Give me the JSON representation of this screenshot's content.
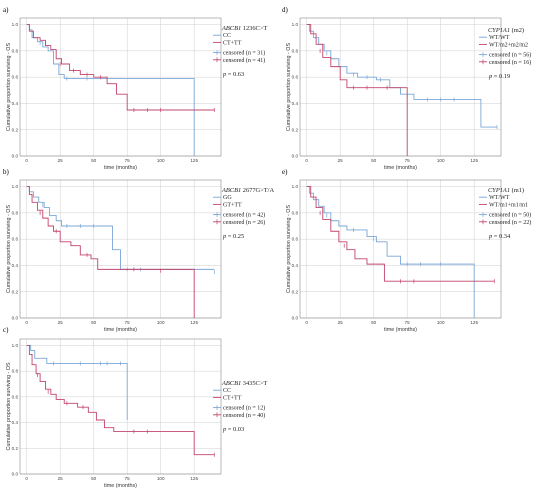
{
  "colors": {
    "blue": "#7aa7d6",
    "red": "#c2456b",
    "grid": "#cfcfcf",
    "frame": "#8a8a8a"
  },
  "chart_data": [
    {
      "panel": "a)",
      "type": "line",
      "xlabel": "time (months)",
      "ylabel": "Cumulative proportion surviving - OS",
      "xlim": [
        -5,
        145
      ],
      "ylim": [
        0,
        1.05
      ],
      "xticks": [
        0,
        25,
        50,
        75,
        100,
        125
      ],
      "yticks": [
        0,
        0.2,
        0.4,
        0.6,
        0.8,
        1.0
      ],
      "legend": {
        "gene": "ABCB1",
        "variant": " 1236C>T",
        "items": [
          "CC",
          "CT+TT",
          "censored (n = 31)",
          "censored (n = 41)"
        ]
      },
      "p_value": "= 0.63",
      "series": [
        {
          "name": "CC",
          "color": "#7aa7d6",
          "steps": [
            [
              0,
              1.0
            ],
            [
              2,
              0.96
            ],
            [
              4,
              0.9
            ],
            [
              8,
              0.87
            ],
            [
              12,
              0.83
            ],
            [
              16,
              0.8
            ],
            [
              20,
              0.7
            ],
            [
              24,
              0.62
            ],
            [
              28,
              0.59
            ],
            [
              125,
              0.59
            ],
            [
              125,
              0.0
            ]
          ],
          "censored": [
            [
              10,
              0.86
            ],
            [
              30,
              0.59
            ],
            [
              45,
              0.59
            ],
            [
              60,
              0.59
            ]
          ]
        },
        {
          "name": "CT+TT",
          "color": "#c2456b",
          "steps": [
            [
              0,
              1.0
            ],
            [
              2,
              0.95
            ],
            [
              5,
              0.9
            ],
            [
              10,
              0.88
            ],
            [
              14,
              0.84
            ],
            [
              18,
              0.81
            ],
            [
              22,
              0.74
            ],
            [
              26,
              0.7
            ],
            [
              32,
              0.65
            ],
            [
              40,
              0.62
            ],
            [
              50,
              0.6
            ],
            [
              60,
              0.55
            ],
            [
              67,
              0.47
            ],
            [
              75,
              0.35
            ],
            [
              140,
              0.35
            ]
          ],
          "censored": [
            [
              14,
              0.86
            ],
            [
              25,
              0.7
            ],
            [
              35,
              0.65
            ],
            [
              45,
              0.62
            ],
            [
              55,
              0.6
            ],
            [
              80,
              0.35
            ],
            [
              90,
              0.35
            ],
            [
              100,
              0.35
            ],
            [
              140,
              0.35
            ]
          ]
        }
      ]
    },
    {
      "panel": "b)",
      "type": "line",
      "xlabel": "time (months)",
      "ylabel": "Cumulative proportion surviving - OS",
      "xlim": [
        -5,
        145
      ],
      "ylim": [
        0,
        1.05
      ],
      "xticks": [
        0,
        25,
        50,
        75,
        100,
        125
      ],
      "yticks": [
        0,
        0.2,
        0.4,
        0.6,
        0.8,
        1.0
      ],
      "legend": {
        "gene": "ABCB1",
        "variant": " 2677G>T/A",
        "items": [
          "GG",
          "GT+TT",
          "censored (n = 42)",
          "censored (n = 26)"
        ]
      },
      "p_value": "= 0.25",
      "series": [
        {
          "name": "GG",
          "color": "#7aa7d6",
          "steps": [
            [
              0,
              1.0
            ],
            [
              2,
              0.96
            ],
            [
              5,
              0.92
            ],
            [
              9,
              0.88
            ],
            [
              13,
              0.84
            ],
            [
              17,
              0.78
            ],
            [
              22,
              0.74
            ],
            [
              26,
              0.7
            ],
            [
              60,
              0.7
            ],
            [
              64,
              0.52
            ],
            [
              70,
              0.37
            ],
            [
              140,
              0.37
            ]
          ],
          "censored": [
            [
              12,
              0.86
            ],
            [
              30,
              0.7
            ],
            [
              40,
              0.7
            ],
            [
              50,
              0.7
            ],
            [
              75,
              0.37
            ],
            [
              85,
              0.37
            ],
            [
              140,
              0.35
            ]
          ]
        },
        {
          "name": "GT+TT",
          "color": "#c2456b",
          "steps": [
            [
              0,
              1.0
            ],
            [
              2,
              0.94
            ],
            [
              4,
              0.88
            ],
            [
              8,
              0.82
            ],
            [
              12,
              0.76
            ],
            [
              16,
              0.7
            ],
            [
              20,
              0.66
            ],
            [
              25,
              0.58
            ],
            [
              33,
              0.55
            ],
            [
              40,
              0.48
            ],
            [
              48,
              0.45
            ],
            [
              53,
              0.37
            ],
            [
              125,
              0.35
            ],
            [
              125,
              0.0
            ]
          ],
          "censored": [
            [
              10,
              0.8
            ],
            [
              22,
              0.66
            ],
            [
              45,
              0.48
            ],
            [
              80,
              0.37
            ],
            [
              100,
              0.36
            ]
          ]
        }
      ]
    },
    {
      "panel": "c)",
      "type": "line",
      "xlabel": "time (months)",
      "ylabel": "Cumulative proportion surviving - OS",
      "xlim": [
        -5,
        145
      ],
      "ylim": [
        0,
        1.05
      ],
      "xticks": [
        0,
        25,
        50,
        75,
        100,
        125
      ],
      "yticks": [
        0,
        0.2,
        0.4,
        0.6,
        0.8,
        1.0
      ],
      "legend": {
        "gene": "ABCB1",
        "variant": " 3435C>T",
        "items": [
          "CC",
          "CT+TT",
          "censored (n = 12)",
          "censored (n = 40)"
        ]
      },
      "p_value": "= 0.03",
      "series": [
        {
          "name": "CC",
          "color": "#7aa7d6",
          "steps": [
            [
              0,
              1.0
            ],
            [
              3,
              0.96
            ],
            [
              6,
              0.9
            ],
            [
              15,
              0.86
            ],
            [
              75,
              0.86
            ],
            [
              75,
              0.42
            ]
          ],
          "censored": [
            [
              20,
              0.86
            ],
            [
              40,
              0.86
            ],
            [
              55,
              0.86
            ],
            [
              60,
              0.86
            ],
            [
              70,
              0.86
            ]
          ]
        },
        {
          "name": "CT+TT",
          "color": "#c2456b",
          "steps": [
            [
              0,
              1.0
            ],
            [
              2,
              0.93
            ],
            [
              4,
              0.85
            ],
            [
              7,
              0.78
            ],
            [
              10,
              0.72
            ],
            [
              14,
              0.66
            ],
            [
              18,
              0.62
            ],
            [
              22,
              0.58
            ],
            [
              28,
              0.55
            ],
            [
              38,
              0.52
            ],
            [
              46,
              0.48
            ],
            [
              52,
              0.42
            ],
            [
              58,
              0.36
            ],
            [
              65,
              0.33
            ],
            [
              125,
              0.33
            ],
            [
              125,
              0.15
            ],
            [
              140,
              0.15
            ]
          ],
          "censored": [
            [
              8,
              0.77
            ],
            [
              16,
              0.64
            ],
            [
              30,
              0.55
            ],
            [
              42,
              0.52
            ],
            [
              80,
              0.33
            ],
            [
              90,
              0.33
            ],
            [
              140,
              0.15
            ]
          ]
        }
      ]
    },
    {
      "panel": "d)",
      "type": "line",
      "xlabel": "time (months)",
      "ylabel": "Cumulative proportion surviving - OS",
      "xlim": [
        -5,
        145
      ],
      "ylim": [
        0,
        1.05
      ],
      "xticks": [
        0,
        25,
        50,
        75,
        100,
        125
      ],
      "yticks": [
        0,
        0.2,
        0.4,
        0.6,
        0.8,
        1.0
      ],
      "legend": {
        "gene": "CYP1A1",
        "variant": " (m2)",
        "items": [
          "WT/WT",
          "WT/m2+m2/m2",
          "censored (n = 56)",
          "censored (n = 16)"
        ]
      },
      "p_value": "= 0.19",
      "series": [
        {
          "name": "WT/WT",
          "color": "#7aa7d6",
          "steps": [
            [
              0,
              1.0
            ],
            [
              2,
              0.95
            ],
            [
              5,
              0.9
            ],
            [
              9,
              0.85
            ],
            [
              13,
              0.8
            ],
            [
              18,
              0.74
            ],
            [
              24,
              0.68
            ],
            [
              30,
              0.63
            ],
            [
              38,
              0.6
            ],
            [
              52,
              0.58
            ],
            [
              62,
              0.52
            ],
            [
              70,
              0.47
            ],
            [
              80,
              0.43
            ],
            [
              130,
              0.43
            ],
            [
              130,
              0.22
            ],
            [
              142,
              0.22
            ]
          ],
          "censored": [
            [
              15,
              0.78
            ],
            [
              35,
              0.62
            ],
            [
              45,
              0.6
            ],
            [
              55,
              0.58
            ],
            [
              75,
              0.45
            ],
            [
              90,
              0.43
            ],
            [
              100,
              0.43
            ],
            [
              110,
              0.43
            ],
            [
              142,
              0.22
            ]
          ]
        },
        {
          "name": "WT/m2+m2/m2",
          "color": "#c2456b",
          "steps": [
            [
              0,
              1.0
            ],
            [
              3,
              0.93
            ],
            [
              7,
              0.85
            ],
            [
              12,
              0.75
            ],
            [
              18,
              0.68
            ],
            [
              25,
              0.58
            ],
            [
              30,
              0.52
            ],
            [
              75,
              0.52
            ],
            [
              75,
              0.0
            ]
          ],
          "censored": [
            [
              10,
              0.8
            ],
            [
              35,
              0.52
            ],
            [
              45,
              0.52
            ],
            [
              60,
              0.52
            ]
          ]
        }
      ]
    },
    {
      "panel": "e)",
      "type": "line",
      "xlabel": "time (months)",
      "ylabel": "Cumulative proportion surviving - OS",
      "xlim": [
        -5,
        145
      ],
      "ylim": [
        0,
        1.05
      ],
      "xticks": [
        0,
        25,
        50,
        75,
        100,
        125
      ],
      "yticks": [
        0,
        0.2,
        0.4,
        0.6,
        0.8,
        1.0
      ],
      "legend": {
        "gene": "CYP1A1",
        "variant": " (m1)",
        "items": [
          "WT/WT",
          "WT/m1+m1/m1",
          "censored (n = 50)",
          "censored (n = 22)"
        ]
      },
      "p_value": "= 0.34",
      "series": [
        {
          "name": "WT/WT",
          "color": "#7aa7d6",
          "steps": [
            [
              0,
              1.0
            ],
            [
              2,
              0.95
            ],
            [
              5,
              0.9
            ],
            [
              9,
              0.85
            ],
            [
              13,
              0.8
            ],
            [
              18,
              0.74
            ],
            [
              24,
              0.7
            ],
            [
              30,
              0.67
            ],
            [
              45,
              0.62
            ],
            [
              52,
              0.58
            ],
            [
              60,
              0.47
            ],
            [
              70,
              0.41
            ],
            [
              125,
              0.41
            ],
            [
              125,
              0.0
            ]
          ],
          "censored": [
            [
              15,
              0.78
            ],
            [
              35,
              0.67
            ],
            [
              50,
              0.6
            ],
            [
              75,
              0.41
            ],
            [
              85,
              0.41
            ],
            [
              100,
              0.41
            ]
          ]
        },
        {
          "name": "WT/m1+m1/m1",
          "color": "#c2456b",
          "steps": [
            [
              0,
              1.0
            ],
            [
              3,
              0.92
            ],
            [
              7,
              0.84
            ],
            [
              12,
              0.75
            ],
            [
              18,
              0.66
            ],
            [
              24,
              0.58
            ],
            [
              30,
              0.52
            ],
            [
              36,
              0.45
            ],
            [
              45,
              0.41
            ],
            [
              58,
              0.28
            ],
            [
              140,
              0.28
            ]
          ],
          "censored": [
            [
              10,
              0.8
            ],
            [
              28,
              0.55
            ],
            [
              70,
              0.28
            ],
            [
              80,
              0.28
            ],
            [
              140,
              0.28
            ]
          ]
        }
      ]
    }
  ]
}
